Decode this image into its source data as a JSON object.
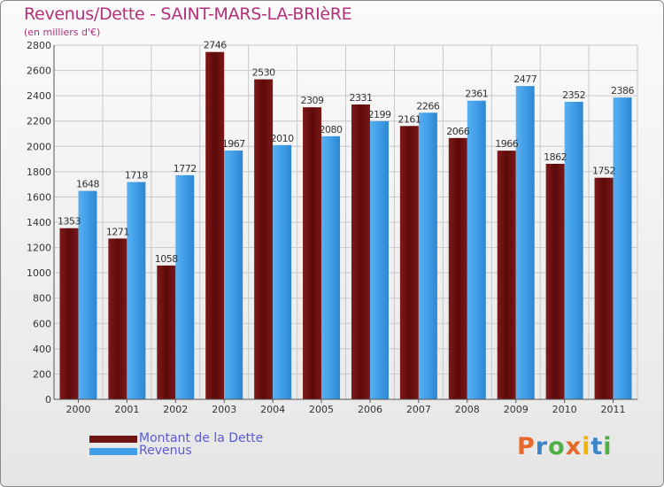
{
  "title": "Revenus/Dette - SAINT-MARS-LA-BRIèRE",
  "subtitle": "(en milliers d'€)",
  "logo": "Proxiti",
  "colors": {
    "dette": "#6e1414",
    "revenus": "#3f9ee8",
    "grid": "#c8c8c8",
    "logo": [
      "#e8672a",
      "#3a86c8",
      "#4fae45",
      "#e8672a",
      "#f0b400",
      "#3a86c8",
      "#4fae45"
    ]
  },
  "legend": [
    {
      "label": "Montant de la Dette",
      "color": "#6e1414"
    },
    {
      "label": "Revenus",
      "color": "#3f9ee8"
    }
  ],
  "chart_data": {
    "type": "bar",
    "categories": [
      "2000",
      "2001",
      "2002",
      "2003",
      "2004",
      "2005",
      "2006",
      "2007",
      "2008",
      "2009",
      "2010",
      "2011"
    ],
    "series": [
      {
        "name": "Montant de la Dette",
        "values": [
          1353,
          1271,
          1058,
          2746,
          2530,
          2309,
          2331,
          2161,
          2066,
          1966,
          1862,
          1752
        ]
      },
      {
        "name": "Revenus",
        "values": [
          1648,
          1718,
          1772,
          1967,
          2010,
          2080,
          2199,
          2266,
          2361,
          2477,
          2352,
          2386
        ]
      }
    ],
    "data_labels": [
      [
        "1353",
        "1271",
        "1058",
        "2746",
        "2530",
        "2309",
        "2331",
        "2161",
        "2066",
        "1966",
        "1862",
        "1752"
      ],
      [
        "1648",
        "1718",
        "1772",
        "1967",
        "2010",
        "2080",
        "2199",
        "2266",
        "2361",
        "2477",
        "2352",
        "2386"
      ]
    ],
    "yticks": [
      0,
      200,
      400,
      600,
      800,
      1000,
      1200,
      1400,
      1600,
      1800,
      2000,
      2200,
      2400,
      2600,
      2800
    ],
    "ylim": [
      0,
      2800
    ],
    "grid": true,
    "legend_position": "bottom-left"
  }
}
